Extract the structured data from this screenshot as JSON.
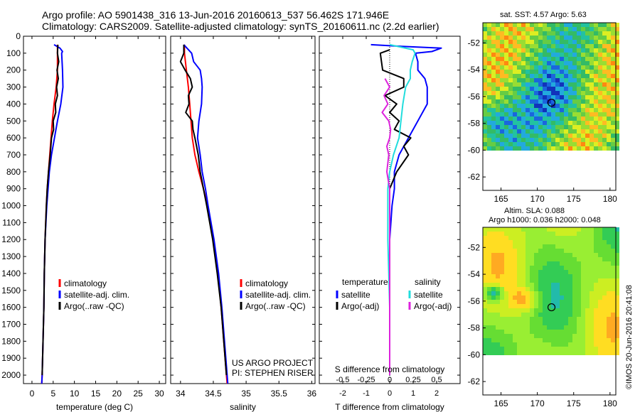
{
  "header": {
    "line1": "Argo profile: AO 5901438_316 13-Jun-2016 20160613_537 56.462S 171.946E",
    "line2": "Climatology: CARS2009. Satellite-adjusted climatology: synTS_20160611.nc (2.2d earlier)"
  },
  "colors": {
    "climatology": "#ff0000",
    "satellite": "#0000ff",
    "argo": "#000000",
    "salinity_sat": "#22dddd",
    "salinity_argo": "#dd22dd"
  },
  "chart_data": [
    {
      "type": "line",
      "id": "temperature",
      "xlabel": "temperature (deg C)",
      "xticks": [
        "0",
        "5",
        "10",
        "15",
        "20",
        "25",
        "30"
      ],
      "xlim": [
        -2,
        31.5
      ],
      "ylim": [
        2050,
        0
      ],
      "yticks": [
        "0",
        "100",
        "200",
        "300",
        "400",
        "500",
        "600",
        "700",
        "800",
        "900",
        "1000",
        "1100",
        "1200",
        "1300",
        "1400",
        "1500",
        "1600",
        "1700",
        "1800",
        "1900",
        "2000"
      ],
      "legend": [
        "climatology",
        "satellite-adj. clim.",
        "Argo(..raw -QC)"
      ],
      "series": [
        {
          "name": "climatology",
          "color": "#ff0000",
          "depth": [
            50,
            100,
            200,
            300,
            400,
            500,
            600,
            700,
            800,
            900,
            1000,
            1200,
            1400,
            1600,
            1800,
            2000,
            2050
          ],
          "values": [
            6.0,
            6.0,
            6.0,
            5.7,
            5.2,
            4.8,
            4.5,
            4.2,
            3.9,
            3.6,
            3.4,
            3.1,
            2.9,
            2.8,
            2.6,
            2.4,
            2.3
          ]
        },
        {
          "name": "satellite-adj. clim.",
          "color": "#0000ff",
          "depth": [
            50,
            70,
            90,
            100,
            200,
            300,
            400,
            500,
            600,
            700,
            800,
            900,
            1000,
            1200,
            1400,
            1600,
            1800,
            2000,
            2050
          ],
          "values": [
            5.2,
            6.6,
            7.2,
            7.0,
            7.2,
            7.3,
            6.8,
            6.0,
            5.3,
            4.6,
            4.1,
            3.8,
            3.5,
            3.1,
            2.9,
            2.8,
            2.6,
            2.4,
            2.3
          ]
        },
        {
          "name": "Argo(..raw -QC)",
          "color": "#000000",
          "depth": [
            50,
            100,
            150,
            200,
            250,
            300,
            350,
            400,
            450,
            500,
            550,
            600,
            700,
            800,
            900,
            1000,
            1200,
            1400,
            1600,
            1800,
            2000
          ],
          "values": [
            6.1,
            6.0,
            6.3,
            5.9,
            6.2,
            5.8,
            6.0,
            5.5,
            5.6,
            5.0,
            5.1,
            4.6,
            4.3,
            3.9,
            3.6,
            3.4,
            3.1,
            2.9,
            2.8,
            2.6,
            2.4
          ]
        }
      ]
    },
    {
      "type": "line",
      "id": "salinity",
      "xlabel": "salinity",
      "xticks": [
        "34",
        "34.5",
        "35",
        "35.5",
        "36"
      ],
      "xlim": [
        33.85,
        36.05
      ],
      "ylim": [
        2050,
        0
      ],
      "legend": [
        "climatology",
        "satellite-adj. clim.",
        "Argo(..raw -QC)"
      ],
      "annotations": [
        "US ARGO PROJECT",
        "PI: STEPHEN RISER"
      ],
      "series": [
        {
          "name": "climatology",
          "color": "#ff0000",
          "depth": [
            50,
            100,
            200,
            300,
            400,
            500,
            600,
            700,
            800,
            900,
            1000,
            1200,
            1400,
            1600,
            1800,
            2000,
            2050
          ],
          "values": [
            34.06,
            34.06,
            34.09,
            34.12,
            34.14,
            34.16,
            34.18,
            34.22,
            34.28,
            34.35,
            34.41,
            34.5,
            34.57,
            34.62,
            34.66,
            34.7,
            34.71
          ]
        },
        {
          "name": "satellite-adj. clim.",
          "color": "#0000ff",
          "depth": [
            50,
            100,
            150,
            200,
            250,
            300,
            400,
            500,
            600,
            700,
            800,
            900,
            1000,
            1200,
            1400,
            1600,
            1800,
            2000,
            2050
          ],
          "values": [
            34.05,
            34.17,
            34.2,
            34.3,
            34.32,
            34.33,
            34.32,
            34.28,
            34.26,
            34.3,
            34.33,
            34.38,
            34.42,
            34.51,
            34.58,
            34.63,
            34.67,
            34.71,
            34.72
          ]
        },
        {
          "name": "Argo(..raw -QC)",
          "color": "#000000",
          "depth": [
            50,
            100,
            150,
            200,
            250,
            300,
            350,
            400,
            450,
            500,
            550,
            600,
            700,
            800,
            900,
            1000,
            1200,
            1400,
            1600,
            1800,
            2000
          ],
          "values": [
            34.05,
            34.05,
            34.0,
            34.07,
            34.15,
            34.18,
            34.12,
            34.13,
            34.08,
            34.18,
            34.19,
            34.22,
            34.27,
            34.3,
            34.35,
            34.4,
            34.49,
            34.56,
            34.62,
            34.66,
            34.7
          ]
        }
      ]
    },
    {
      "type": "line",
      "id": "difference",
      "xlabel": "T difference from climatology",
      "xlabel2": "S difference from climatology",
      "xticks_T": [
        "-2",
        "-1",
        "0",
        "1",
        "2"
      ],
      "xticks_S": [
        "-0.5",
        "-0.25",
        "0",
        "0.25",
        "0.5"
      ],
      "xlim": [
        -3,
        3
      ],
      "ylim": [
        2050,
        0
      ],
      "legend_headers": [
        "temperature",
        "salinity"
      ],
      "legend": [
        "satellite",
        "Argo(-adj)",
        "satellite",
        "Argo(-adj)"
      ],
      "series": [
        {
          "name": "satellite",
          "quantity": "temperature",
          "color": "#0000ff",
          "depth": [
            50,
            60,
            70,
            90,
            100,
            150,
            200,
            250,
            300,
            400,
            500,
            600,
            700,
            800,
            900,
            1000,
            1200,
            1400,
            1600,
            1800,
            2000
          ],
          "values": [
            -0.8,
            0.5,
            2.2,
            1.8,
            1.1,
            1.2,
            1.2,
            1.5,
            1.6,
            1.6,
            1.2,
            0.8,
            0.4,
            0.2,
            0.2,
            0.1,
            0.0,
            0.0,
            0.0,
            0.0,
            0.0
          ]
        },
        {
          "name": "Argo(-adj)",
          "quantity": "temperature",
          "color": "#000000",
          "depth": [
            80,
            100,
            200,
            250,
            300,
            350,
            400,
            450,
            500,
            550,
            600,
            650,
            700,
            800,
            900,
            1000,
            1200,
            1400,
            1600,
            1800,
            2000
          ],
          "values": [
            0.0,
            -0.4,
            -0.3,
            0.6,
            0.6,
            -0.2,
            0.3,
            0.0,
            0.4,
            0.2,
            0.9,
            0.6,
            0.8,
            0.3,
            0.0,
            0.0,
            0.0,
            0.0,
            0.0,
            0.0,
            0.0
          ]
        },
        {
          "name": "satellite",
          "quantity": "salinity",
          "color": "#22dddd",
          "depth": [
            50,
            80,
            100,
            150,
            200,
            250,
            300,
            400,
            500,
            600,
            700,
            800,
            900,
            1000,
            1200,
            1400,
            1600,
            1800,
            2000
          ],
          "values": [
            0.0,
            0.25,
            0.27,
            0.24,
            0.22,
            0.22,
            0.17,
            0.14,
            0.12,
            0.1,
            0.04,
            0.0,
            -0.02,
            -0.02,
            -0.02,
            -0.01,
            0.0,
            0.0,
            0.0
          ]
        },
        {
          "name": "Argo(-adj)",
          "quantity": "salinity",
          "color": "#dd22dd",
          "depth": [
            250,
            300,
            350,
            400,
            450,
            500,
            550,
            600,
            650,
            700,
            800,
            900,
            1000,
            1200,
            1400,
            1600,
            1800,
            2000
          ],
          "values": [
            -0.05,
            0.0,
            -0.06,
            -0.02,
            -0.08,
            -0.01,
            0.01,
            0.0,
            -0.03,
            -0.01,
            -0.03,
            0.0,
            0.0,
            0.0,
            0.0,
            0.0,
            0.0,
            0.0
          ]
        }
      ]
    }
  ],
  "maps": [
    {
      "id": "sst-map",
      "title": "sat. SST: 4.57 Argo: 5.63",
      "xticks": [
        "165",
        "170",
        "175",
        "180"
      ],
      "yticks": [
        "-52",
        "-54",
        "-56",
        "-58",
        "-60",
        "-62"
      ],
      "xlim": [
        162.5,
        180.8
      ],
      "ylim": [
        -63,
        -50.5
      ],
      "marker": {
        "lon": 171.946,
        "lat": -56.462
      }
    },
    {
      "id": "sla-map",
      "title": "Altim. SLA: 0.088",
      "subtitle": "Argo h1000: 0.036 h2000: 0.048",
      "xticks": [
        "165",
        "170",
        "175",
        "180"
      ],
      "yticks": [
        "-52",
        "-54",
        "-56",
        "-58",
        "-60",
        "-62"
      ],
      "xlim": [
        162.5,
        180.8
      ],
      "ylim": [
        -63,
        -50.5
      ],
      "marker": {
        "lon": 171.946,
        "lat": -56.462
      }
    }
  ],
  "credit": "©IMOS 20-Jun-2016 20:41:08"
}
